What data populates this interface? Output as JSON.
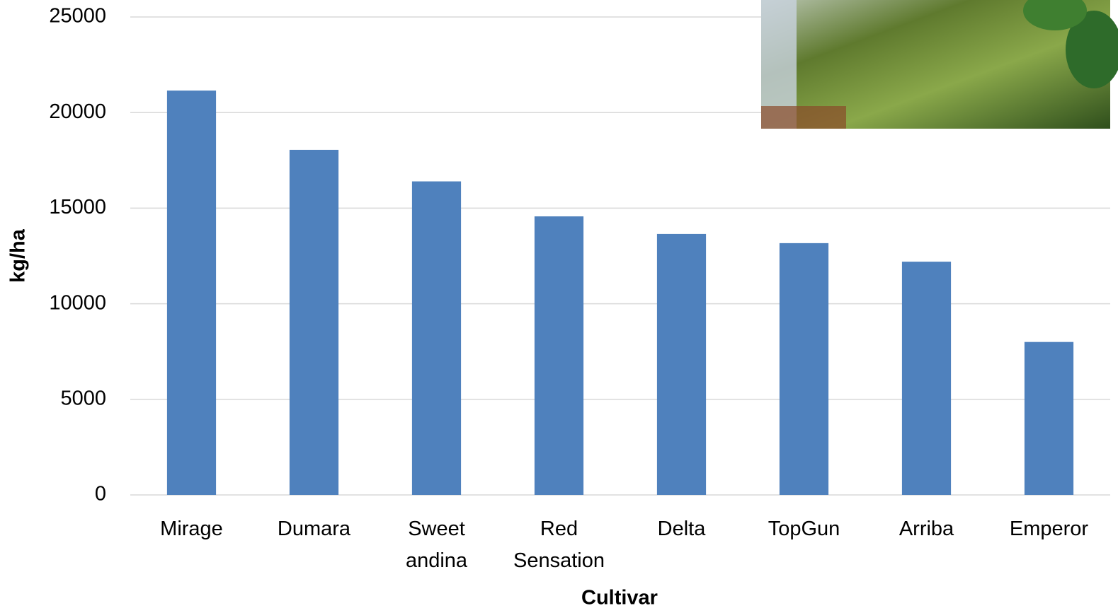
{
  "chart_data": {
    "type": "bar",
    "x_label": "Cultivar",
    "y_label": "kg/ha",
    "categories": [
      "Mirage",
      "Dumara",
      "Sweet andina",
      "Red Sensation",
      "Delta",
      "TopGun",
      "Arriba",
      "Emperor"
    ],
    "values": [
      21150,
      18050,
      16400,
      14570,
      13650,
      13170,
      12200,
      8000
    ],
    "color": "#4f81bd",
    "ylim": [
      0,
      25000
    ],
    "yticks": [
      0,
      5000,
      10000,
      15000,
      20000,
      25000
    ],
    "grid": true
  }
}
